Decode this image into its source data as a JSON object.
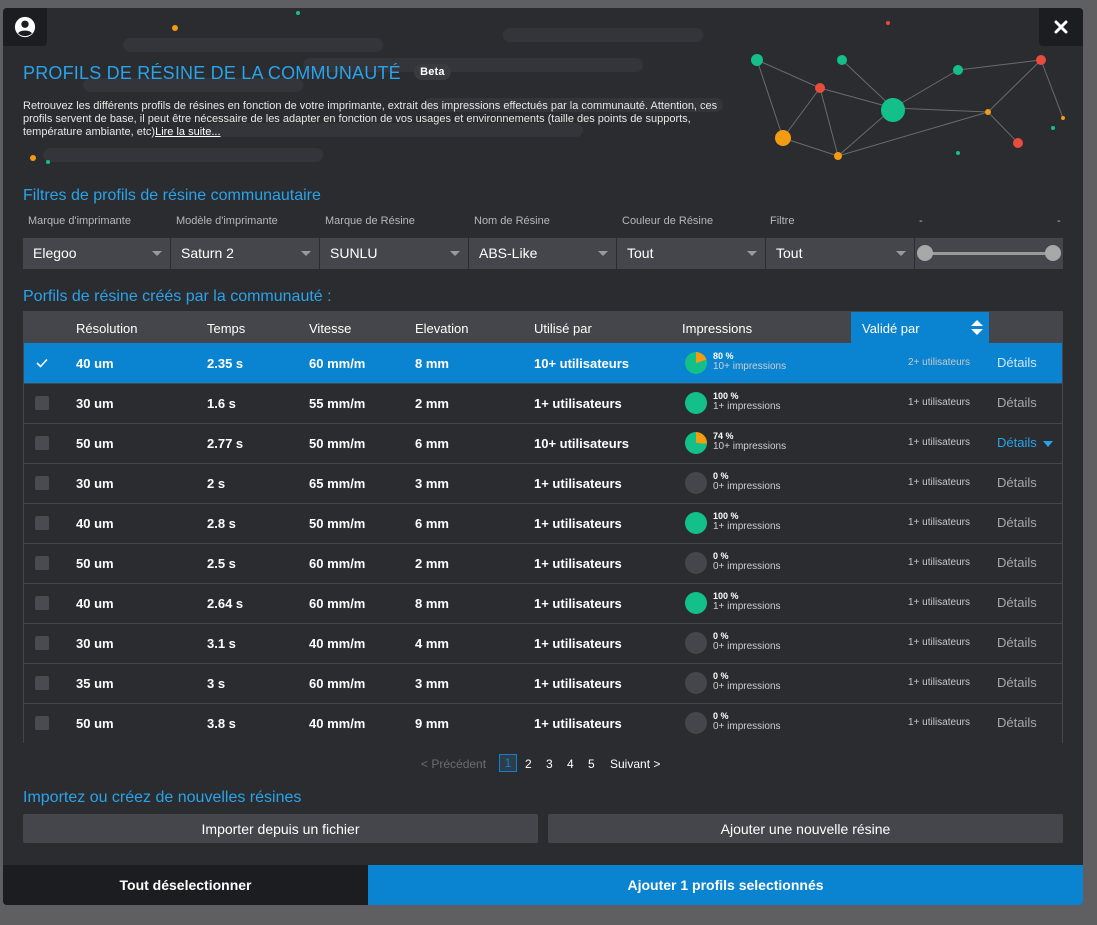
{
  "header": {
    "title": "PROFILS DE RÉSINE DE LA COMMUNAUTÉ",
    "badge": "Beta",
    "intro_text": "Retrouvez les différents profils de résines en fonction de votre imprimante, extrait des impressions effectués par la communauté. Attention, ces profils servent de base, il peut être nécessaire de les adapter en fonction de vos usages et environnements (taille des points de supports, température ambiante, etc)",
    "read_more": "Lire la suite..."
  },
  "filters": {
    "section_title": "Filtres de profils de résine communautaire",
    "labels": [
      "Marque d'imprimante",
      "Modèle d'imprimante",
      "Marque de Résine",
      "Nom de Résine",
      "Couleur de Résine",
      "Filtre",
      "-",
      "-"
    ],
    "values": [
      "Elegoo",
      "Saturn 2",
      "SUNLU",
      "ABS-Like",
      "Tout",
      "Tout"
    ]
  },
  "table": {
    "section_title": "Porfils de résine créés par la communauté :",
    "columns": [
      "Résolution",
      "Temps",
      "Vitesse",
      "Elevation",
      "Utilisé par",
      "Impressions",
      "Validé par"
    ],
    "details_label": "Détails",
    "rows": [
      {
        "selected": true,
        "res": "40 um",
        "time": "2.35 s",
        "speed": "60 mm/m",
        "elev": "8 mm",
        "used": "10+ utilisateurs",
        "pct": "80 %",
        "pct_value": 80,
        "imp": "10+ impressions",
        "valid": "2+ utilisateurs",
        "expanded": false
      },
      {
        "selected": false,
        "res": "30 um",
        "time": "1.6 s",
        "speed": "55 mm/m",
        "elev": "2 mm",
        "used": "1+ utilisateurs",
        "pct": "100 %",
        "pct_value": 100,
        "imp": "1+ impressions",
        "valid": "1+ utilisateurs",
        "expanded": false
      },
      {
        "selected": false,
        "res": "50 um",
        "time": "2.77 s",
        "speed": "50 mm/m",
        "elev": "6 mm",
        "used": "10+ utilisateurs",
        "pct": "74 %",
        "pct_value": 74,
        "imp": "10+ impressions",
        "valid": "1+ utilisateurs",
        "expanded": true
      },
      {
        "selected": false,
        "res": "30 um",
        "time": "2 s",
        "speed": "65 mm/m",
        "elev": "3 mm",
        "used": "1+ utilisateurs",
        "pct": "0 %",
        "pct_value": 0,
        "imp": "0+ impressions",
        "valid": "1+ utilisateurs",
        "expanded": false
      },
      {
        "selected": false,
        "res": "40 um",
        "time": "2.8 s",
        "speed": "50 mm/m",
        "elev": "6 mm",
        "used": "1+ utilisateurs",
        "pct": "100 %",
        "pct_value": 100,
        "imp": "1+ impressions",
        "valid": "1+ utilisateurs",
        "expanded": false
      },
      {
        "selected": false,
        "res": "50 um",
        "time": "2.5 s",
        "speed": "60 mm/m",
        "elev": "2 mm",
        "used": "1+ utilisateurs",
        "pct": "0 %",
        "pct_value": 0,
        "imp": "0+ impressions",
        "valid": "1+ utilisateurs",
        "expanded": false
      },
      {
        "selected": false,
        "res": "40 um",
        "time": "2.64 s",
        "speed": "60 mm/m",
        "elev": "8 mm",
        "used": "1+ utilisateurs",
        "pct": "100 %",
        "pct_value": 100,
        "imp": "1+ impressions",
        "valid": "1+ utilisateurs",
        "expanded": false
      },
      {
        "selected": false,
        "res": "30 um",
        "time": "3.1 s",
        "speed": "40 mm/m",
        "elev": "4 mm",
        "used": "1+ utilisateurs",
        "pct": "0 %",
        "pct_value": 0,
        "imp": "0+ impressions",
        "valid": "1+ utilisateurs",
        "expanded": false
      },
      {
        "selected": false,
        "res": "35 um",
        "time": "3 s",
        "speed": "60 mm/m",
        "elev": "3 mm",
        "used": "1+ utilisateurs",
        "pct": "0 %",
        "pct_value": 0,
        "imp": "0+ impressions",
        "valid": "1+ utilisateurs",
        "expanded": false
      },
      {
        "selected": false,
        "res": "50 um",
        "time": "3.8 s",
        "speed": "40 mm/m",
        "elev": "9 mm",
        "used": "1+ utilisateurs",
        "pct": "0 %",
        "pct_value": 0,
        "imp": "0+ impressions",
        "valid": "1+ utilisateurs",
        "expanded": false
      }
    ]
  },
  "pagination": {
    "prev": "< Précédent",
    "pages": [
      "1",
      "2",
      "3",
      "4",
      "5"
    ],
    "next": "Suivant >"
  },
  "import": {
    "section_title": "Importez ou créez de nouvelles résines",
    "import_label": "Importer depuis un fichier",
    "add_label": "Ajouter une nouvelle résine"
  },
  "footer": {
    "deselect_label": "Tout déselectionner",
    "add_selected_label": "Ajouter 1 profils selectionnés"
  },
  "colors": {
    "accent": "#0a84d0",
    "title": "#29a3ea",
    "success": "#14c08a",
    "warning": "#f39c12"
  },
  "icons": {
    "account": "account-circle-icon",
    "close": "close-icon"
  }
}
